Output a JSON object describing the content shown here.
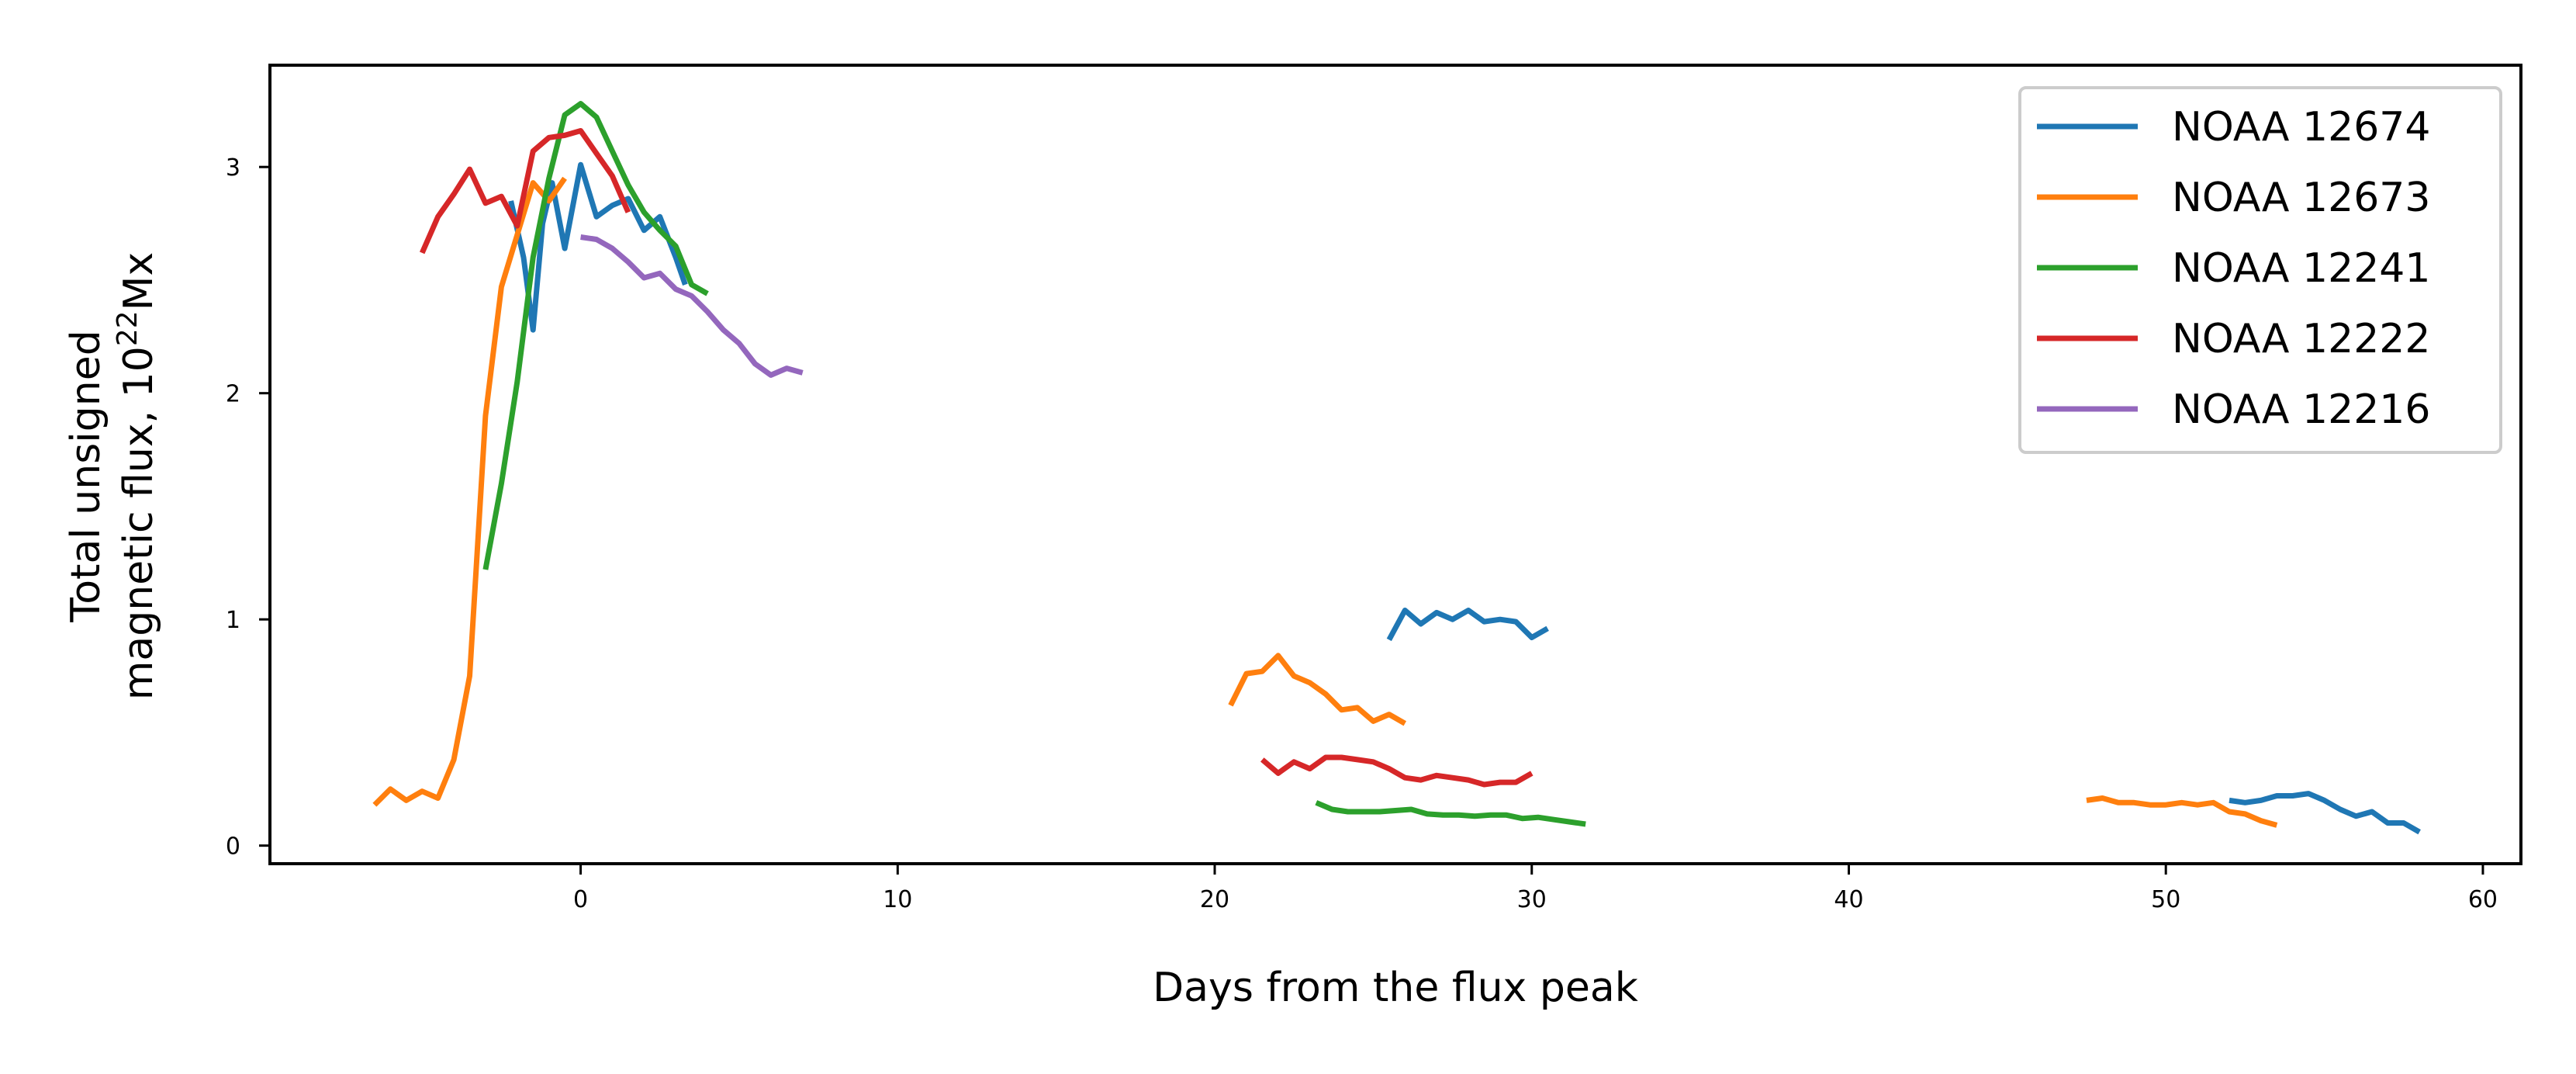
{
  "chart_data": {
    "type": "line",
    "title": "",
    "xlabel": "Days from the flux peak",
    "ylabel_line1": "Total unsigned",
    "ylabel_line2_prefix": "magnetic flux, 10",
    "ylabel_line2_exponent": "22",
    "ylabel_line2_suffix": "Mx",
    "xlim": [
      -9.8,
      61.2
    ],
    "ylim": [
      -0.08,
      3.45
    ],
    "xticks": [
      0,
      10,
      20,
      30,
      40,
      50,
      60
    ],
    "yticks": [
      0,
      1,
      2,
      3
    ],
    "grid": false,
    "legend_position": "top-right",
    "series": [
      {
        "name": "NOAA 12674",
        "color": "#1f77b4",
        "segments": [
          [
            [
              -2.2,
              2.85
            ],
            [
              -1.8,
              2.6
            ],
            [
              -1.5,
              2.28
            ],
            [
              -1.2,
              2.75
            ],
            [
              -0.9,
              2.93
            ],
            [
              -0.5,
              2.64
            ],
            [
              0.0,
              3.01
            ],
            [
              0.5,
              2.78
            ],
            [
              1.0,
              2.83
            ],
            [
              1.5,
              2.86
            ],
            [
              2.0,
              2.72
            ],
            [
              2.5,
              2.78
            ],
            [
              3.0,
              2.6
            ],
            [
              3.3,
              2.48
            ]
          ],
          [
            [
              25.5,
              0.91
            ],
            [
              26.0,
              1.04
            ],
            [
              26.5,
              0.98
            ],
            [
              27.0,
              1.03
            ],
            [
              27.5,
              1.0
            ],
            [
              28.0,
              1.04
            ],
            [
              28.5,
              0.99
            ],
            [
              29.0,
              1.0
            ],
            [
              29.5,
              0.99
            ],
            [
              30.0,
              0.92
            ],
            [
              30.5,
              0.96
            ]
          ],
          [
            [
              52.0,
              0.2
            ],
            [
              52.5,
              0.19
            ],
            [
              53.0,
              0.2
            ],
            [
              53.5,
              0.22
            ],
            [
              54.0,
              0.22
            ],
            [
              54.5,
              0.23
            ],
            [
              55.0,
              0.2
            ],
            [
              55.5,
              0.16
            ],
            [
              56.0,
              0.13
            ],
            [
              56.5,
              0.15
            ],
            [
              57.0,
              0.1
            ],
            [
              57.5,
              0.1
            ],
            [
              58.0,
              0.06
            ]
          ]
        ]
      },
      {
        "name": "NOAA 12673",
        "color": "#ff7f0e",
        "segments": [
          [
            [
              -6.5,
              0.18
            ],
            [
              -6.0,
              0.25
            ],
            [
              -5.5,
              0.2
            ],
            [
              -5.0,
              0.24
            ],
            [
              -4.5,
              0.21
            ],
            [
              -4.0,
              0.38
            ],
            [
              -3.5,
              0.75
            ],
            [
              -3.0,
              1.9
            ],
            [
              -2.5,
              2.47
            ],
            [
              -2.0,
              2.7
            ],
            [
              -1.5,
              2.93
            ],
            [
              -1.0,
              2.85
            ],
            [
              -0.5,
              2.95
            ]
          ],
          [
            [
              20.5,
              0.62
            ],
            [
              21.0,
              0.76
            ],
            [
              21.5,
              0.77
            ],
            [
              22.0,
              0.84
            ],
            [
              22.5,
              0.75
            ],
            [
              23.0,
              0.72
            ],
            [
              23.5,
              0.67
            ],
            [
              24.0,
              0.6
            ],
            [
              24.5,
              0.61
            ],
            [
              25.0,
              0.55
            ],
            [
              25.5,
              0.58
            ],
            [
              26.0,
              0.54
            ]
          ],
          [
            [
              47.5,
              0.2
            ],
            [
              48.0,
              0.21
            ],
            [
              48.5,
              0.19
            ],
            [
              49.0,
              0.19
            ],
            [
              49.5,
              0.18
            ],
            [
              50.0,
              0.18
            ],
            [
              50.5,
              0.19
            ],
            [
              51.0,
              0.18
            ],
            [
              51.5,
              0.19
            ],
            [
              52.0,
              0.15
            ],
            [
              52.5,
              0.14
            ],
            [
              53.0,
              0.11
            ],
            [
              53.5,
              0.09
            ]
          ]
        ]
      },
      {
        "name": "NOAA 12241",
        "color": "#2ca02c",
        "segments": [
          [
            [
              -3.0,
              1.22
            ],
            [
              -2.5,
              1.6
            ],
            [
              -2.0,
              2.05
            ],
            [
              -1.5,
              2.6
            ],
            [
              -1.0,
              2.95
            ],
            [
              -0.5,
              3.23
            ],
            [
              0.0,
              3.28
            ],
            [
              0.5,
              3.22
            ],
            [
              1.0,
              3.07
            ],
            [
              1.5,
              2.92
            ],
            [
              2.0,
              2.8
            ],
            [
              2.5,
              2.72
            ],
            [
              3.0,
              2.65
            ],
            [
              3.5,
              2.48
            ],
            [
              4.0,
              2.44
            ]
          ],
          [
            [
              23.2,
              0.19
            ],
            [
              23.7,
              0.16
            ],
            [
              24.2,
              0.15
            ],
            [
              24.7,
              0.15
            ],
            [
              25.2,
              0.15
            ],
            [
              25.7,
              0.155
            ],
            [
              26.2,
              0.16
            ],
            [
              26.7,
              0.14
            ],
            [
              27.2,
              0.135
            ],
            [
              27.7,
              0.135
            ],
            [
              28.2,
              0.13
            ],
            [
              28.7,
              0.135
            ],
            [
              29.2,
              0.135
            ],
            [
              29.7,
              0.12
            ],
            [
              30.2,
              0.125
            ],
            [
              30.7,
              0.115
            ],
            [
              31.2,
              0.105
            ],
            [
              31.7,
              0.095
            ]
          ]
        ]
      },
      {
        "name": "NOAA 12222",
        "color": "#d62728",
        "segments": [
          [
            [
              -5.0,
              2.62
            ],
            [
              -4.5,
              2.78
            ],
            [
              -4.0,
              2.88
            ],
            [
              -3.5,
              2.99
            ],
            [
              -3.0,
              2.84
            ],
            [
              -2.5,
              2.87
            ],
            [
              -2.0,
              2.74
            ],
            [
              -1.5,
              3.07
            ],
            [
              -1.0,
              3.13
            ],
            [
              -0.5,
              3.14
            ],
            [
              0.0,
              3.16
            ],
            [
              0.5,
              3.06
            ],
            [
              1.0,
              2.96
            ],
            [
              1.5,
              2.8
            ]
          ],
          [
            [
              21.5,
              0.38
            ],
            [
              22.0,
              0.32
            ],
            [
              22.5,
              0.37
            ],
            [
              23.0,
              0.34
            ],
            [
              23.5,
              0.39
            ],
            [
              24.0,
              0.39
            ],
            [
              24.5,
              0.38
            ],
            [
              25.0,
              0.37
            ],
            [
              25.5,
              0.34
            ],
            [
              26.0,
              0.3
            ],
            [
              26.5,
              0.29
            ],
            [
              27.0,
              0.31
            ],
            [
              27.5,
              0.3
            ],
            [
              28.0,
              0.29
            ],
            [
              28.5,
              0.27
            ],
            [
              29.0,
              0.28
            ],
            [
              29.5,
              0.28
            ],
            [
              30.0,
              0.32
            ]
          ]
        ]
      },
      {
        "name": "NOAA 12216",
        "color": "#9467bd",
        "segments": [
          [
            [
              0.0,
              2.69
            ],
            [
              0.5,
              2.68
            ],
            [
              1.0,
              2.64
            ],
            [
              1.5,
              2.58
            ],
            [
              2.0,
              2.51
            ],
            [
              2.5,
              2.53
            ],
            [
              3.0,
              2.46
            ],
            [
              3.5,
              2.43
            ],
            [
              4.0,
              2.36
            ],
            [
              4.5,
              2.28
            ],
            [
              5.0,
              2.22
            ],
            [
              5.5,
              2.13
            ],
            [
              6.0,
              2.08
            ],
            [
              6.5,
              2.11
            ],
            [
              7.0,
              2.09
            ]
          ]
        ]
      }
    ]
  }
}
